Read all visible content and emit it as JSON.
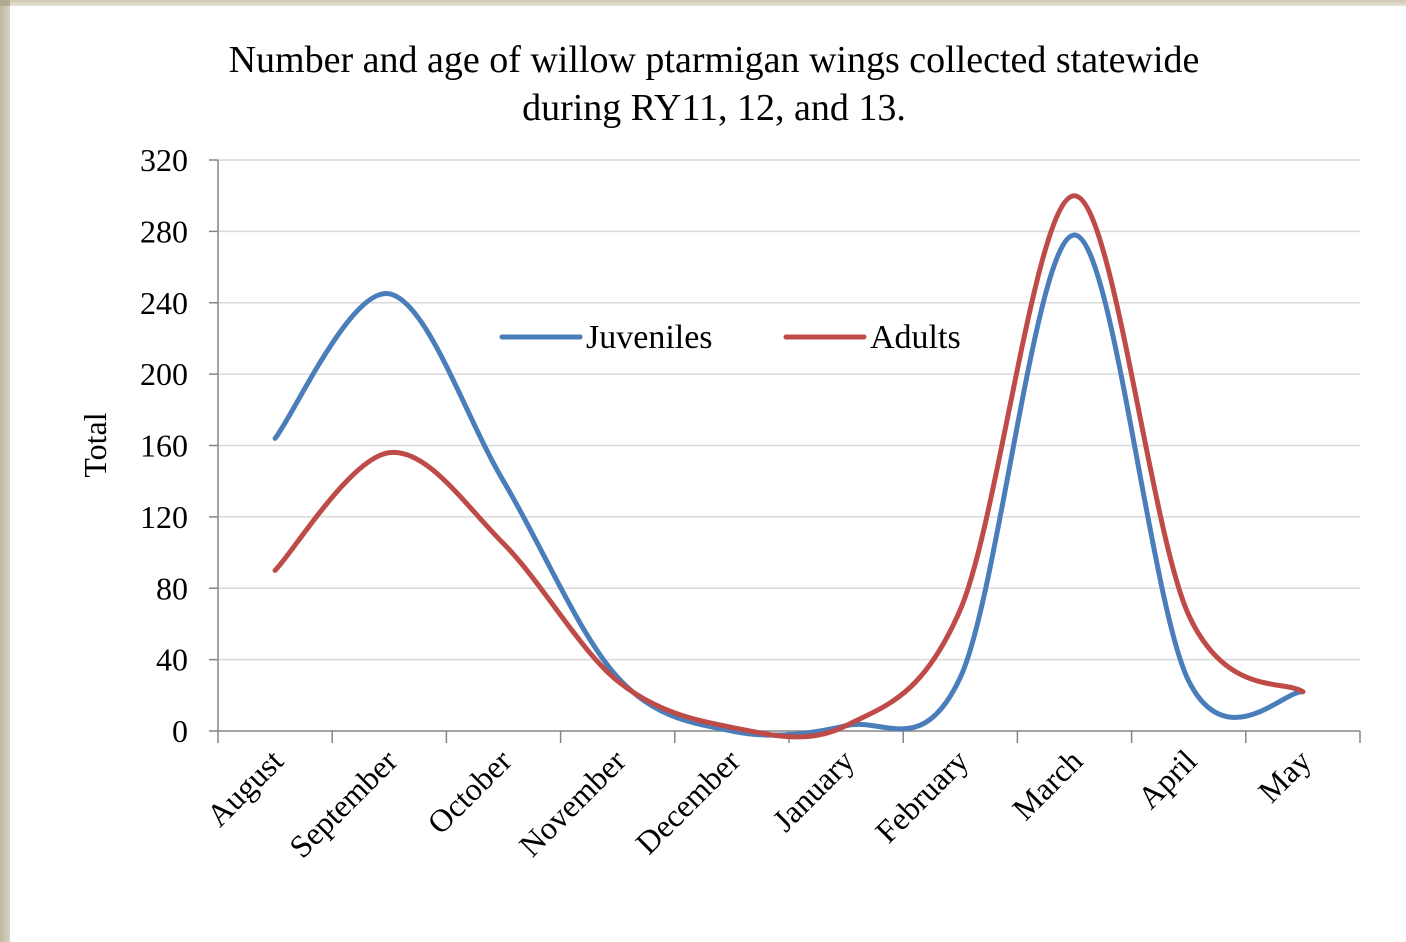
{
  "chart_data": {
    "type": "line",
    "smooth": true,
    "title_line1": "Number and age of willow ptarmigan wings collected statewide",
    "title_line2": "during RY11,  12, and 13.",
    "xlabel": "",
    "ylabel": "Total",
    "ylim": [
      0,
      320
    ],
    "yticks": [
      0,
      40,
      80,
      120,
      160,
      200,
      240,
      280,
      320
    ],
    "grid": true,
    "legend_position": "top-center",
    "categories": [
      "August",
      "September",
      "October",
      "November",
      "December",
      "January",
      "February",
      "March",
      "April",
      "May"
    ],
    "series": [
      {
        "name": "Juveniles",
        "color": "#4a7ebb",
        "values": [
          164,
          245,
          140,
          30,
          0,
          3,
          30,
          278,
          28,
          22
        ]
      },
      {
        "name": "Adults",
        "color": "#be4b48",
        "values": [
          90,
          156,
          105,
          28,
          2,
          3,
          68,
          300,
          65,
          22
        ]
      }
    ]
  },
  "colors": {
    "grid": "#d9d9d9",
    "axis": "#868686",
    "frame": "#cfc8b3"
  }
}
